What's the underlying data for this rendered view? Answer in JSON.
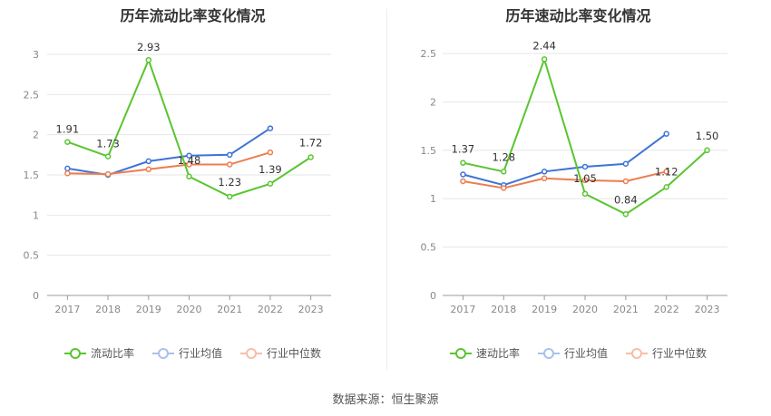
{
  "charts": [
    {
      "title": "历年流动比率变化情况",
      "legend": [
        {
          "name": "流动比率",
          "color": "#5ac530"
        },
        {
          "name": "行业均值",
          "color": "#3e74d6"
        },
        {
          "name": "行业中位数",
          "color": "#ed7d4e"
        }
      ]
    },
    {
      "title": "历年速动比率变化情况",
      "legend": [
        {
          "name": "速动比率",
          "color": "#5ac530"
        },
        {
          "name": "行业均值",
          "color": "#3e74d6"
        },
        {
          "name": "行业中位数",
          "color": "#ed7d4e"
        }
      ]
    }
  ],
  "source": "数据来源：恒生聚源",
  "chart_data": [
    {
      "type": "line",
      "title": "历年流动比率变化情况",
      "categories": [
        "2017",
        "2018",
        "2019",
        "2020",
        "2021",
        "2022",
        "2023"
      ],
      "ylim": [
        0,
        3
      ],
      "yticks": [
        0,
        0.5,
        1,
        1.5,
        2,
        2.5,
        3
      ],
      "ytick_labels": [
        "0",
        "0.5",
        "1",
        "1.5",
        "2",
        "2.5",
        "3"
      ],
      "grid": true,
      "legend_position": "bottom",
      "series": [
        {
          "name": "流动比率",
          "color": "#5ac530",
          "labeled": true,
          "values": [
            1.91,
            1.73,
            2.93,
            1.48,
            1.23,
            1.39,
            1.72
          ],
          "labels": [
            "1.91",
            "1.73",
            "2.93",
            "1.48",
            "1.23",
            "1.39",
            "1.72"
          ]
        },
        {
          "name": "行业均值",
          "color": "#3e74d6",
          "values": [
            1.58,
            1.5,
            1.67,
            1.74,
            1.75,
            2.08,
            null
          ]
        },
        {
          "name": "行业中位数",
          "color": "#ed7d4e",
          "values": [
            1.52,
            1.51,
            1.57,
            1.63,
            1.63,
            1.78,
            null
          ]
        }
      ]
    },
    {
      "type": "line",
      "title": "历年速动比率变化情况",
      "categories": [
        "2017",
        "2018",
        "2019",
        "2020",
        "2021",
        "2022",
        "2023"
      ],
      "ylim": [
        0,
        2.5
      ],
      "yticks": [
        0,
        0.5,
        1,
        1.5,
        2,
        2.5
      ],
      "ytick_labels": [
        "0",
        "0.5",
        "1",
        "1.5",
        "2",
        "2.5"
      ],
      "grid": true,
      "legend_position": "bottom",
      "series": [
        {
          "name": "速动比率",
          "color": "#5ac530",
          "labeled": true,
          "values": [
            1.37,
            1.28,
            2.44,
            1.05,
            0.84,
            1.12,
            1.5
          ],
          "labels": [
            "1.37",
            "1.28",
            "2.44",
            "1.05",
            "0.84",
            "1.12",
            "1.50"
          ]
        },
        {
          "name": "行业均值",
          "color": "#3e74d6",
          "values": [
            1.25,
            1.14,
            1.28,
            1.33,
            1.36,
            1.67,
            null
          ]
        },
        {
          "name": "行业中位数",
          "color": "#ed7d4e",
          "values": [
            1.18,
            1.11,
            1.21,
            1.19,
            1.18,
            1.28,
            null
          ]
        }
      ]
    }
  ]
}
